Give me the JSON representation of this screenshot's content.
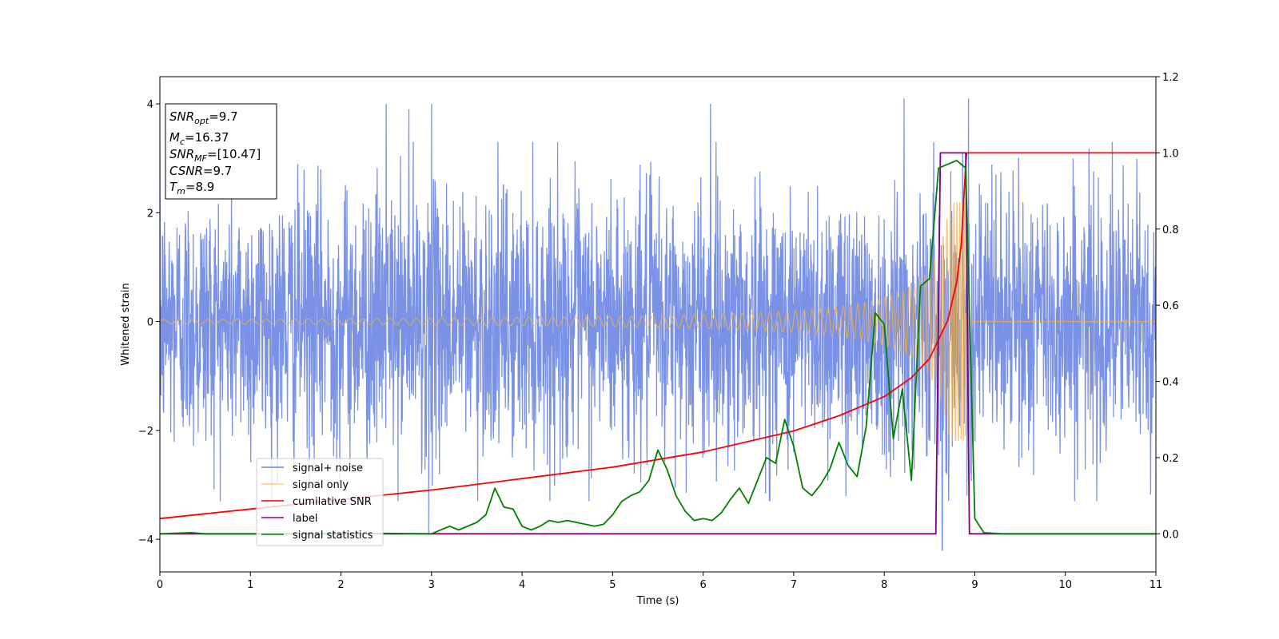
{
  "chart_data": {
    "type": "line",
    "xlabel": "Time (s)",
    "ylabel": "Whitened strain",
    "xlim": [
      0,
      11
    ],
    "ylim_left": [
      -4.6,
      4.5
    ],
    "ylim_right": [
      -0.1,
      1.2
    ],
    "x_ticks": [
      "0",
      "1",
      "2",
      "3",
      "4",
      "5",
      "6",
      "7",
      "8",
      "9",
      "10",
      "11"
    ],
    "y_ticks_left": [
      "−4",
      "−2",
      "0",
      "2",
      "4"
    ],
    "y_ticks_right": [
      "0.0",
      "0.2",
      "0.4",
      "0.6",
      "0.8",
      "1.0",
      "1.2"
    ],
    "legend_position": "lower-left",
    "colors": {
      "noise": "#6b86e3",
      "signal": "#f5b041",
      "cumulative": "#ff0000",
      "label": "#800080",
      "stats": "#008000"
    },
    "info_box": {
      "snr_opt_main": "SNR",
      "snr_opt_sub": "opt",
      "snr_opt_value": "=9.7",
      "mc_main": "M",
      "mc_sub": "c",
      "mc_value": "=16.37",
      "snr_mf_main": "SNR",
      "snr_mf_sub": "MF",
      "snr_mf_value": "=[10.47]",
      "csnr_main": "CSNR",
      "csnr_value": "=9.7",
      "tm_main": "T",
      "tm_sub": "m",
      "tm_value": "=8.9"
    },
    "series": [
      {
        "name": "signal+ noise",
        "axis": "left",
        "description": "whitened strain, approx. gaussian noise with std ~1.2 spanning 0–11 s, extremes near ±4",
        "noise_std": 1.2,
        "spikes": [
          [
            2.5,
            4.0
          ],
          [
            2.75,
            3.9
          ],
          [
            2.97,
            -3.9
          ],
          [
            3.0,
            4.0
          ],
          [
            6.08,
            4.0
          ],
          [
            8.22,
            4.1
          ],
          [
            8.93,
            4.1
          ],
          [
            8.64,
            -4.2
          ]
        ]
      },
      {
        "name": "signal only",
        "axis": "left",
        "description": "chirp signal merging at ~8.9 s",
        "chirp_end": 8.9,
        "amp_start": 0.04,
        "amp_peak": 2.2
      },
      {
        "name": "cumilative SNR",
        "axis": "right",
        "x": [
          0,
          1,
          2,
          3,
          4,
          5,
          6,
          7,
          7.5,
          8,
          8.3,
          8.5,
          8.7,
          8.8,
          8.85,
          8.9,
          8.91,
          11
        ],
        "y": [
          0.04,
          0.065,
          0.09,
          0.115,
          0.145,
          0.175,
          0.215,
          0.27,
          0.31,
          0.36,
          0.41,
          0.46,
          0.56,
          0.66,
          0.76,
          0.97,
          1.0,
          1.0
        ]
      },
      {
        "name": "label",
        "axis": "right",
        "x": [
          0,
          8.57,
          8.62,
          8.9,
          8.94,
          11
        ],
        "y": [
          0.0,
          0.0,
          1.0,
          1.0,
          0.0,
          0.0
        ]
      },
      {
        "name": "signal statistics",
        "axis": "right",
        "x": [
          0,
          0.35,
          0.5,
          1,
          2,
          2.5,
          3.0,
          3.2,
          3.3,
          3.5,
          3.6,
          3.7,
          3.8,
          3.9,
          4.0,
          4.1,
          4.2,
          4.3,
          4.4,
          4.5,
          4.6,
          4.7,
          4.8,
          4.9,
          5.0,
          5.1,
          5.2,
          5.3,
          5.4,
          5.5,
          5.6,
          5.7,
          5.8,
          5.9,
          6.0,
          6.1,
          6.2,
          6.3,
          6.4,
          6.5,
          6.6,
          6.7,
          6.8,
          6.9,
          7.0,
          7.1,
          7.2,
          7.3,
          7.4,
          7.5,
          7.6,
          7.7,
          7.8,
          7.9,
          8.0,
          8.1,
          8.2,
          8.3,
          8.4,
          8.5,
          8.6,
          8.7,
          8.8,
          8.9,
          9.0,
          9.1,
          9.3,
          10,
          11
        ],
        "y": [
          0.0,
          0.003,
          0.0,
          0.0,
          0.0,
          0.001,
          0.0,
          0.02,
          0.01,
          0.03,
          0.05,
          0.12,
          0.07,
          0.065,
          0.02,
          0.01,
          0.02,
          0.035,
          0.03,
          0.035,
          0.03,
          0.025,
          0.02,
          0.025,
          0.05,
          0.085,
          0.1,
          0.11,
          0.14,
          0.22,
          0.17,
          0.1,
          0.06,
          0.035,
          0.04,
          0.035,
          0.055,
          0.09,
          0.12,
          0.08,
          0.14,
          0.2,
          0.185,
          0.3,
          0.23,
          0.12,
          0.1,
          0.13,
          0.17,
          0.24,
          0.18,
          0.15,
          0.28,
          0.58,
          0.55,
          0.25,
          0.38,
          0.14,
          0.65,
          0.67,
          0.96,
          0.97,
          0.98,
          0.96,
          0.04,
          0.003,
          0.0,
          0.0,
          0.0
        ]
      }
    ]
  }
}
